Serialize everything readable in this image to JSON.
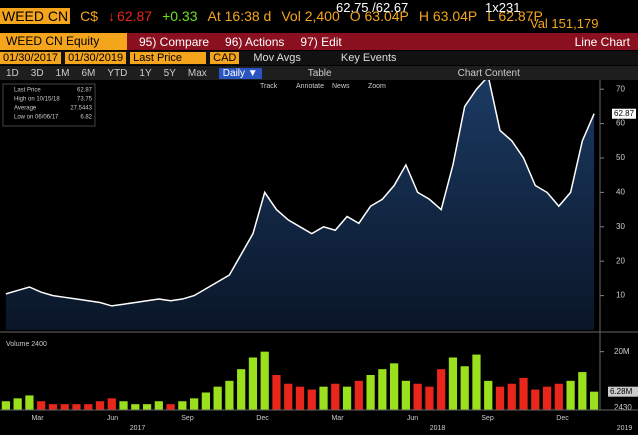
{
  "header": {
    "ticker": "WEED CN",
    "currency": "C$",
    "arrow": "↓",
    "last": "62.87",
    "change": "+0.33",
    "time": "At 16:38 d",
    "volume": "Vol 2,400",
    "open": "O 63.04P",
    "high": "H 63.04P",
    "low": "L 62.87P",
    "bid_ask": "62.75 /62.67",
    "size": "1x231",
    "value": "Val 151,179"
  },
  "toolbar": {
    "security": "WEED CN Equity",
    "menus": [
      "95) Compare",
      "96) Actions",
      "97) Edit"
    ],
    "view": "Line Chart"
  },
  "settings": {
    "start": "01/30/2017",
    "end": "01/30/2019",
    "field": "Last Price",
    "currency": "CAD",
    "mov_avgs": "Mov Avgs",
    "key_events": "Key Events"
  },
  "periods": [
    "1D",
    "3D",
    "1M",
    "6M",
    "YTD",
    "1Y",
    "5Y",
    "Max"
  ],
  "frequency": "Daily ▼",
  "table": "Table",
  "chart_content": "Chart Content",
  "tools": [
    "Track",
    "Annotate",
    "News",
    "Zoom"
  ],
  "legend": [
    {
      "label": "Last Price",
      "value": "62.87"
    },
    {
      "label": "High on 10/15/18",
      "value": "73.75"
    },
    {
      "label": "Average",
      "value": "27.5443"
    },
    {
      "label": "Low on 06/06/17",
      "value": "6.82"
    }
  ],
  "chart_data": [
    {
      "type": "area",
      "color": "#ffffff",
      "fill": "#1b3a63",
      "values": [
        10.5,
        11.5,
        12.5,
        11,
        10,
        9.5,
        9,
        8.5,
        8,
        7,
        7.5,
        8,
        8.5,
        9,
        8.5,
        9,
        10,
        12,
        14,
        16,
        22,
        28,
        40,
        35,
        32,
        30,
        28,
        30,
        29,
        33,
        31,
        36,
        38,
        42,
        48,
        40,
        38,
        35,
        48,
        65,
        70,
        73.75,
        58,
        55,
        50,
        42,
        40,
        36,
        40,
        55,
        62.87
      ],
      "last_label": "62.87",
      "ylim": [
        0,
        75
      ],
      "yticks": [
        10,
        20,
        30,
        40,
        50,
        60,
        70
      ]
    },
    {
      "type": "bar",
      "title": "Volume 2400",
      "up_color": "#9be01c",
      "down_color": "#e8261b",
      "values": [
        3,
        4,
        5,
        3,
        2,
        2,
        2,
        2,
        3,
        4,
        3,
        2,
        2,
        3,
        2,
        3,
        4,
        6,
        8,
        10,
        14,
        18,
        20,
        12,
        9,
        8,
        7,
        8,
        9,
        8,
        10,
        12,
        14,
        16,
        10,
        9,
        8,
        14,
        18,
        15,
        19,
        10,
        8,
        9,
        11,
        7,
        8,
        9,
        10,
        13,
        6.28
      ],
      "last_label": "6.28M",
      "annotation": "2430",
      "ylim": [
        0,
        24
      ],
      "yticks": [
        {
          "value": 20,
          "label": "20M"
        }
      ],
      "months": [
        "Mar",
        "Jun",
        "Sep",
        "Dec",
        "Mar",
        "Jun",
        "Sep",
        "Dec"
      ],
      "years": [
        "2017",
        "2018",
        "2019"
      ]
    }
  ]
}
